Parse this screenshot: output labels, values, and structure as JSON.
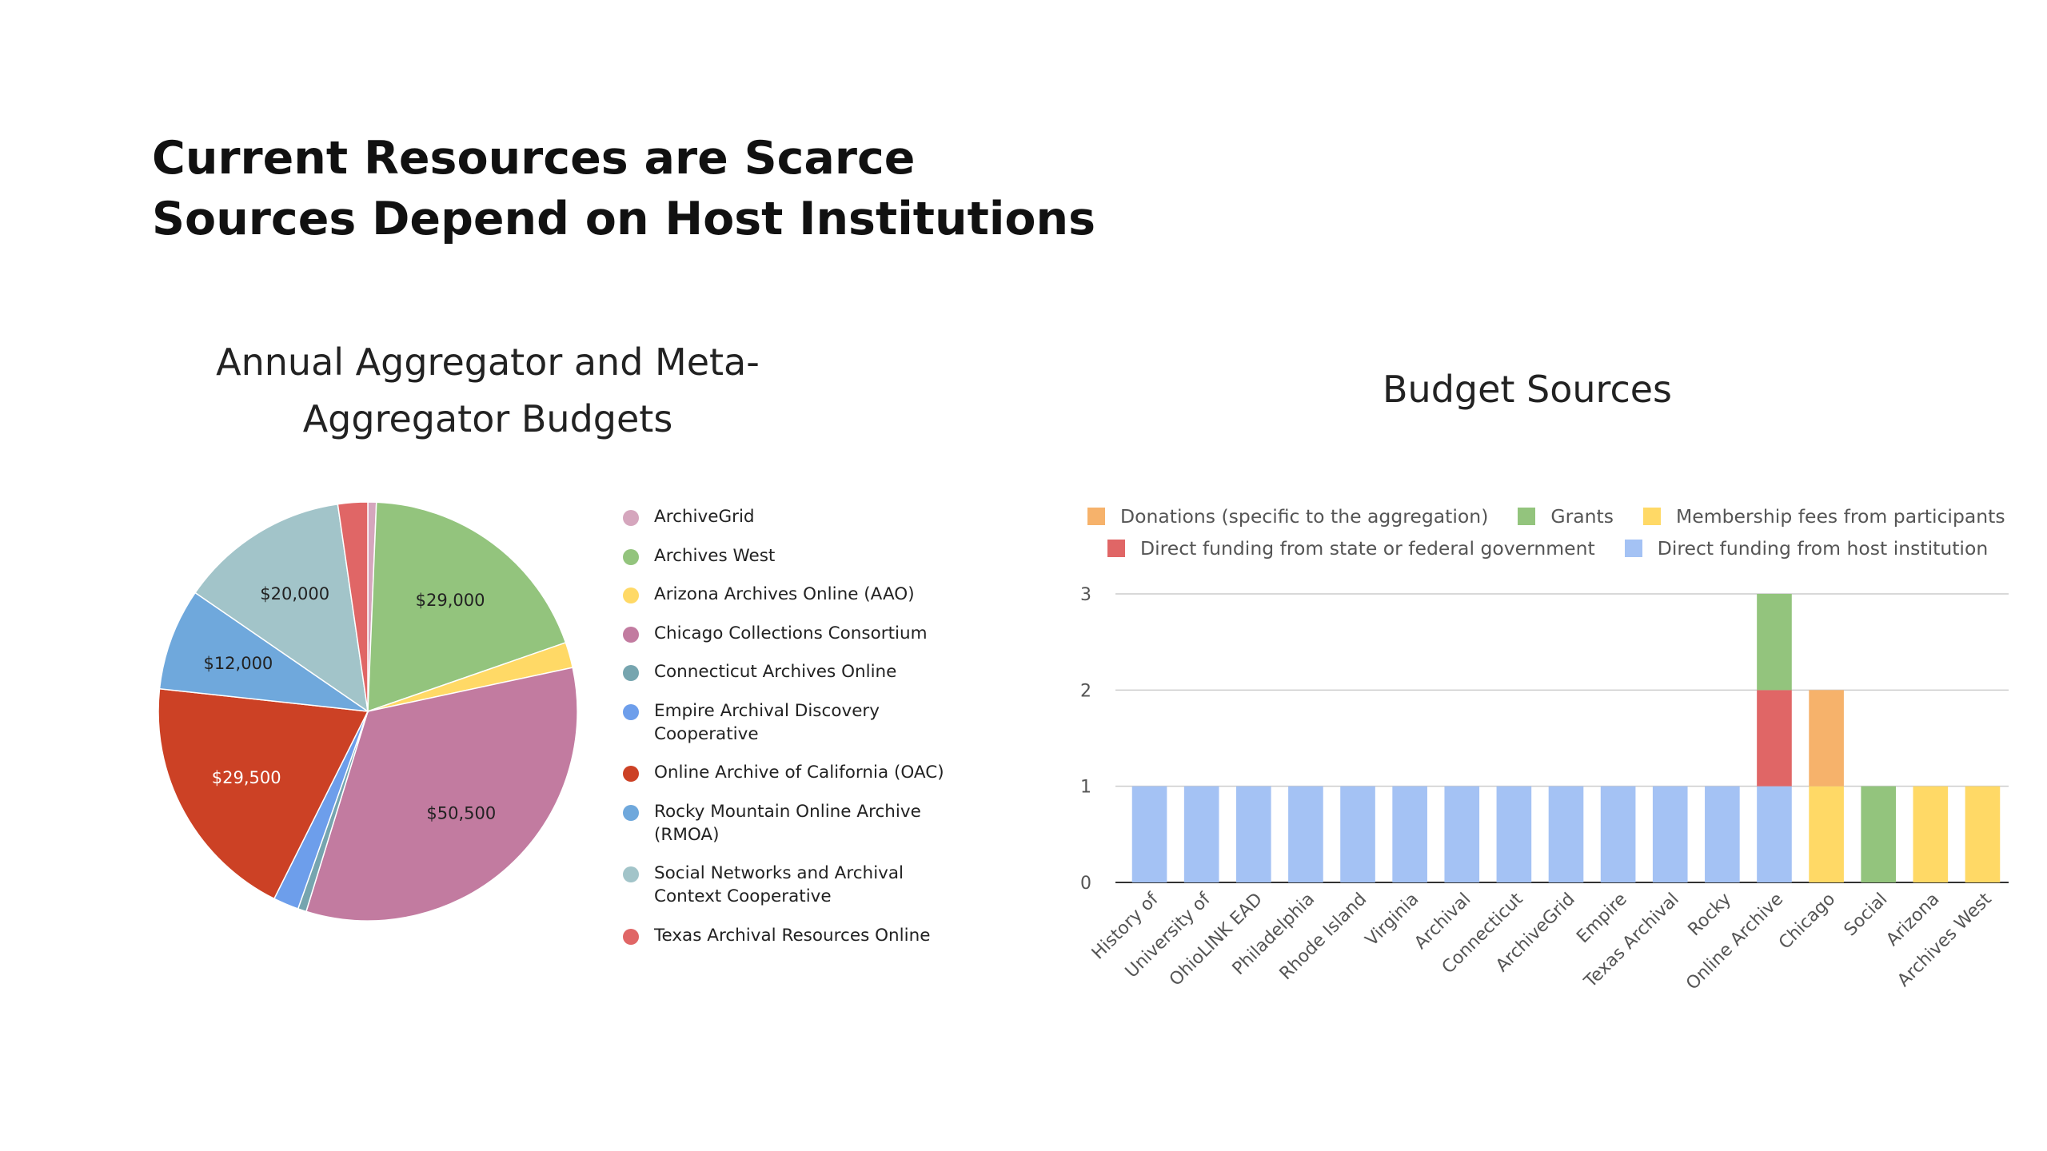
{
  "slide": {
    "title_line1": "Current Resources are Scarce",
    "title_line2": "Sources Depend on Host Institutions"
  },
  "chart_data": [
    {
      "type": "pie",
      "title_line1": "Annual Aggregator and Meta-",
      "title_line2": "Aggregator Budgets",
      "legend_position": "right",
      "slices": [
        {
          "name": "ArchiveGrid",
          "value": 1000,
          "color": "#d5a6bd",
          "label": ""
        },
        {
          "name": "Archives West",
          "value": 29000,
          "color": "#93c47d",
          "label": "$29,000"
        },
        {
          "name": "Arizona Archives Online (AAO)",
          "value": 3000,
          "color": "#ffd966",
          "label": ""
        },
        {
          "name": "Chicago Collections Consortium",
          "value": 50500,
          "color": "#c27ba0",
          "label": "$50,500"
        },
        {
          "name": "Connecticut Archives Online",
          "value": 1000,
          "color": "#76a5af",
          "label": ""
        },
        {
          "name": "Empire Archival Discovery Cooperative",
          "value": 3000,
          "color": "#6d9eeb",
          "label": ""
        },
        {
          "name": "Online Archive of California (OAC)",
          "value": 29500,
          "color": "#cc4125",
          "label": "$29,500"
        },
        {
          "name": "Rocky Mountain Online Archive (RMOA)",
          "value": 12000,
          "color": "#6fa8dc",
          "label": "$12,000"
        },
        {
          "name": "Social Networks and Archival Context Cooperative",
          "value": 20000,
          "color": "#a2c4c9",
          "label": "$20,000"
        },
        {
          "name": "Texas Archival Resources Online",
          "value": 3500,
          "color": "#e06666",
          "label": ""
        }
      ],
      "legend": [
        {
          "name": "ArchiveGrid",
          "color": "#d5a6bd"
        },
        {
          "name": "Archives West",
          "color": "#93c47d"
        },
        {
          "name": "Arizona Archives Online (AAO)",
          "color": "#ffd966"
        },
        {
          "name": "Chicago Collections Consortium",
          "color": "#c27ba0"
        },
        {
          "name": "Connecticut Archives Online",
          "color": "#76a5af"
        },
        {
          "name": "Empire Archival Discovery\nCooperative",
          "color": "#6d9eeb"
        },
        {
          "name": "Online Archive of California (OAC)",
          "color": "#cc4125"
        },
        {
          "name": "Rocky Mountain Online Archive\n(RMOA)",
          "color": "#6fa8dc"
        },
        {
          "name": "Social Networks and Archival\nContext Cooperative",
          "color": "#a2c4c9"
        },
        {
          "name": "Texas Archival Resources Online",
          "color": "#e06666"
        }
      ]
    },
    {
      "type": "bar",
      "stacked": true,
      "title": "Budget Sources",
      "legend_position": "top",
      "grid": true,
      "ylim": [
        0,
        3
      ],
      "yticks": [
        0,
        1,
        2,
        3
      ],
      "categories": [
        "History of",
        "University of",
        "OhioLINK EAD",
        "Philadelphia",
        "Rhode Island",
        "Virginia",
        "Archival",
        "Connecticut",
        "ArchiveGrid",
        "Empire",
        "Texas Archival",
        "Rocky",
        "Online Archive",
        "Chicago",
        "Social",
        "Arizona",
        "Archives West"
      ],
      "series": [
        {
          "name": "Direct funding from host institution",
          "color": "#a4c2f4",
          "values": [
            1,
            1,
            1,
            1,
            1,
            1,
            1,
            1,
            1,
            1,
            1,
            1,
            1,
            0,
            0,
            0,
            0
          ]
        },
        {
          "name": "Membership fees from participants",
          "color": "#ffd966",
          "values": [
            0,
            0,
            0,
            0,
            0,
            0,
            0,
            0,
            0,
            0,
            0,
            0,
            0,
            1,
            0,
            1,
            1
          ]
        },
        {
          "name": "Direct funding from state or federal government",
          "color": "#e06666",
          "values": [
            0,
            0,
            0,
            0,
            0,
            0,
            0,
            0,
            0,
            0,
            0,
            0,
            1,
            0,
            0,
            0,
            0
          ]
        },
        {
          "name": "Donations (specific to the aggregation)",
          "color": "#f6b26b",
          "values": [
            0,
            0,
            0,
            0,
            0,
            0,
            0,
            0,
            0,
            0,
            0,
            0,
            0,
            1,
            0,
            0,
            0
          ]
        },
        {
          "name": "Grants",
          "color": "#93c47d",
          "values": [
            0,
            0,
            0,
            0,
            0,
            0,
            0,
            0,
            0,
            0,
            0,
            0,
            1,
            0,
            1,
            0,
            0
          ]
        }
      ],
      "legend_rows": [
        [
          {
            "name": "Donations (specific to the aggregation)",
            "color": "#f6b26b"
          },
          {
            "name": "Grants",
            "color": "#93c47d"
          },
          {
            "name": "Membership fees from participants",
            "color": "#ffd966"
          }
        ],
        [
          {
            "name": "Direct funding from state or federal government",
            "color": "#e06666"
          },
          {
            "name": "Direct funding from host institution",
            "color": "#a4c2f4"
          }
        ]
      ]
    }
  ]
}
